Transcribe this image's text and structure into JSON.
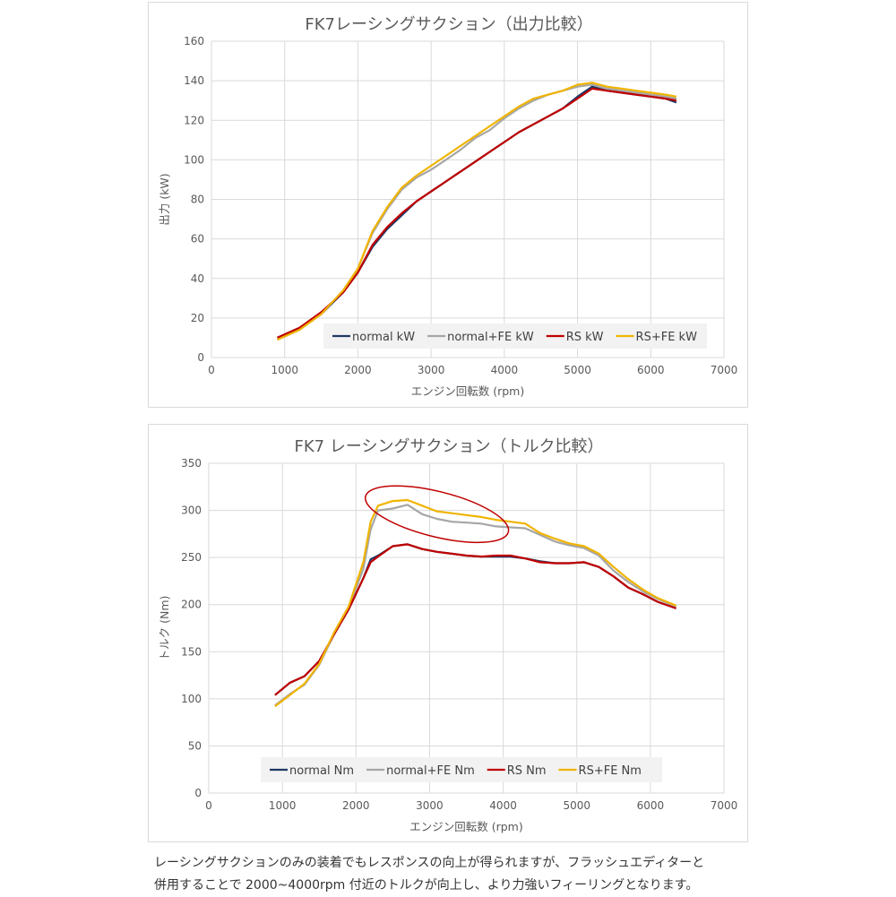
{
  "colors": {
    "normal_kw": "#1f3864",
    "normal_fe": "#a6a6a6",
    "rs": "#c00000",
    "rs_fe": "#f0b400",
    "grid": "#d9d9d9",
    "highlight": "#c00000"
  },
  "caption": {
    "line1": "レーシングサクションのみの装着でもレスポンスの向上が得られますが、フラッシュエディターと",
    "line2": "併用することで 2000~4000rpm 付近のトルクが向上し、より力強いフィーリングとなります。"
  },
  "chart_data": [
    {
      "type": "line",
      "title": "FK7レーシングサクション（出力比較）",
      "xlabel": "エンジン回転数 (rpm)",
      "ylabel": "出力 (kW)",
      "xlim": [
        0,
        7000
      ],
      "ylim": [
        0,
        160
      ],
      "xticks": [
        0,
        1000,
        2000,
        3000,
        4000,
        5000,
        6000,
        7000
      ],
      "yticks": [
        0,
        20,
        40,
        60,
        80,
        100,
        120,
        140,
        160
      ],
      "grid": true,
      "legend_position": "bottom-right",
      "x": [
        900,
        1200,
        1500,
        1800,
        2000,
        2200,
        2400,
        2600,
        2800,
        3000,
        3200,
        3400,
        3600,
        3800,
        4000,
        4200,
        4400,
        4600,
        4800,
        5000,
        5200,
        5400,
        5600,
        5800,
        6000,
        6200,
        6350
      ],
      "series": [
        {
          "name": "normal kW",
          "color_key": "normal_kw",
          "values": [
            10,
            15,
            22,
            33,
            43,
            56,
            65,
            72,
            79,
            84,
            89,
            94,
            99,
            104,
            109,
            114,
            118,
            122,
            126,
            132,
            137,
            135,
            134,
            133,
            132,
            131,
            129
          ]
        },
        {
          "name": "normal+FE kW",
          "color_key": "normal_fe",
          "values": [
            9,
            14,
            22,
            34,
            45,
            63,
            75,
            85,
            91,
            95,
            100,
            105,
            111,
            115,
            121,
            126,
            130,
            133,
            135,
            137,
            138,
            136,
            135,
            134,
            133,
            132,
            131
          ]
        },
        {
          "name": "RS kW",
          "color_key": "rs",
          "values": [
            10,
            15,
            23,
            33,
            43,
            57,
            66,
            73,
            79,
            84,
            89,
            94,
            99,
            104,
            109,
            114,
            118,
            122,
            126,
            131,
            136,
            135,
            134,
            133,
            132,
            131,
            130
          ]
        },
        {
          "name": "RS+FE kW",
          "color_key": "rs_fe",
          "values": [
            9,
            14,
            22,
            34,
            45,
            64,
            76,
            86,
            92,
            97,
            102,
            107,
            112,
            117,
            122,
            127,
            131,
            133,
            135,
            138,
            139,
            137,
            136,
            135,
            134,
            133,
            132
          ]
        }
      ]
    },
    {
      "type": "line",
      "title": "FK7 レーシングサクション（トルク比較）",
      "xlabel": "エンジン回転数 (rpm)",
      "ylabel": "トルク (Nm)",
      "xlim": [
        0,
        7000
      ],
      "ylim": [
        0,
        350
      ],
      "xticks": [
        0,
        1000,
        2000,
        3000,
        4000,
        5000,
        6000,
        7000
      ],
      "yticks": [
        0,
        50,
        100,
        150,
        200,
        250,
        300,
        350
      ],
      "grid": true,
      "legend_position": "bottom-right",
      "annotation": {
        "shape": "ellipse",
        "center": [
          3100,
          296
        ],
        "rx": 1000,
        "ry": 24,
        "rotate_deg": 14,
        "color_key": "highlight"
      },
      "x": [
        900,
        1100,
        1300,
        1500,
        1700,
        1900,
        2100,
        2200,
        2300,
        2500,
        2700,
        2900,
        3100,
        3300,
        3500,
        3700,
        3900,
        4100,
        4300,
        4500,
        4700,
        4900,
        5100,
        5300,
        5500,
        5700,
        5900,
        6100,
        6350
      ],
      "series": [
        {
          "name": "normal Nm",
          "color_key": "normal_kw",
          "values": [
            104,
            117,
            124,
            140,
            168,
            195,
            228,
            248,
            252,
            262,
            264,
            259,
            256,
            254,
            252,
            251,
            251,
            251,
            249,
            246,
            244,
            244,
            245,
            240,
            230,
            218,
            211,
            203,
            196
          ]
        },
        {
          "name": "normal+FE Nm",
          "color_key": "normal_fe",
          "values": [
            93,
            105,
            115,
            136,
            168,
            196,
            238,
            280,
            300,
            302,
            306,
            296,
            291,
            288,
            287,
            286,
            283,
            282,
            281,
            274,
            267,
            263,
            260,
            252,
            236,
            224,
            214,
            206,
            198
          ]
        },
        {
          "name": "RS Nm",
          "color_key": "rs",
          "values": [
            104,
            117,
            124,
            140,
            168,
            195,
            228,
            245,
            251,
            262,
            264,
            259,
            256,
            254,
            252,
            251,
            252,
            252,
            249,
            245,
            244,
            244,
            245,
            240,
            230,
            218,
            211,
            203,
            196
          ]
        },
        {
          "name": "RS+FE Nm",
          "color_key": "rs_fe",
          "values": [
            92,
            104,
            116,
            137,
            170,
            198,
            245,
            288,
            305,
            310,
            311,
            305,
            299,
            297,
            295,
            293,
            290,
            288,
            286,
            276,
            270,
            265,
            262,
            254,
            240,
            227,
            216,
            207,
            199
          ]
        }
      ]
    }
  ]
}
